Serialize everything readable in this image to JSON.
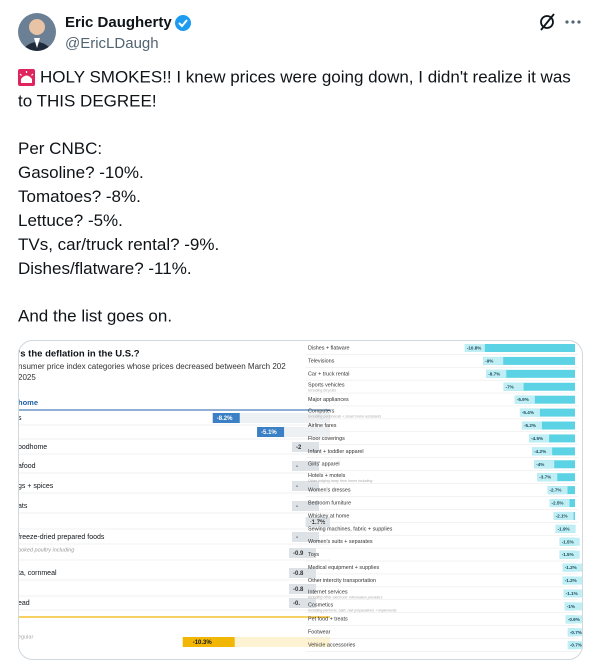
{
  "author": {
    "name": "Eric Daugherty",
    "handle": "@EricLDaugh"
  },
  "tweet": {
    "paragraphs": [
      [
        "HOLY SMOKES!! I knew prices were going down, I didn't realize it was",
        "to THIS DEGREE!"
      ],
      [
        "Per CNBC:",
        "Gasoline? -10%.",
        "Tomatoes? -8%.",
        "Lettuce? -5%.",
        "TVs, car/truck rental? -9%.",
        "Dishes/flatware? -11%."
      ],
      [
        "And the list goes on."
      ]
    ]
  },
  "image": {
    "left": {
      "title": "'s the deflation in the U.S.?",
      "subtitle": [
        "nsumer price index categories whose prices decreased between March 202",
        "2025"
      ],
      "section": "home",
      "rows": [
        {
          "label": "s",
          "value": -8.2,
          "value_label": "-8.2%"
        },
        {
          "value": -5.1,
          "value_label": "-5.1%"
        },
        {
          "label": "oodhome",
          "value_label": "-2"
        },
        {
          "label": "afood",
          "value_label": "-"
        },
        {
          "label": "gs + spices",
          "value_label": "-"
        },
        {
          "label": "ats",
          "value_label": "-"
        },
        {
          "value": -1.7,
          "value_label": "-1.7%"
        },
        {
          "label": " freeze-dried prepared foods",
          "value_label": "-"
        },
        {
          "note": "ooked poultry including",
          "value_label": "-0.9"
        },
        {
          "label": "ta, cornmeal",
          "value_label": "-0.8"
        },
        {
          "value_label": "-0.8"
        },
        {
          "label": "ead",
          "value_label": "-0."
        }
      ],
      "footer": {
        "note": "egular",
        "value": -10.3,
        "value_label": "-10.3%"
      }
    },
    "right": {
      "rows": [
        {
          "label": "Dishes + flatware",
          "value": -10.8,
          "value_label": "-10.8%"
        },
        {
          "label": "Televisions",
          "value": -9,
          "value_label": "-9%"
        },
        {
          "label": "Car + truck rental",
          "value": -8.7,
          "value_label": "-8.7%"
        },
        {
          "label": "Sports vehicles",
          "note": "Including bicycles",
          "value": -7,
          "value_label": "-7%"
        },
        {
          "label": "Major appliances",
          "value": -5.9,
          "value_label": "-5.9%"
        },
        {
          "label": "Computers",
          "note": "Including peripherals + smart home assistants",
          "value": -5.4,
          "value_label": "-5.4%"
        },
        {
          "label": "Airline fares",
          "value": -5.2,
          "value_label": "-5.2%"
        },
        {
          "label": "Floor coverings",
          "value": -4.5,
          "value_label": "-4.5%"
        },
        {
          "label": "Infant + toddler apparel",
          "value": -4.2,
          "value_label": "-4.2%"
        },
        {
          "label": "Girls' apparel",
          "value": -4,
          "value_label": "-4%"
        },
        {
          "label": "Hotels + motels",
          "note": "Other lodging away from home including",
          "value": -3.7,
          "value_label": "-3.7%"
        },
        {
          "label": "Women's dresses",
          "value": -2.7,
          "value_label": "-2.7%"
        },
        {
          "label": "Bedroom furniture",
          "value": -2.5,
          "value_label": "-2.5%"
        },
        {
          "label": "Whiskey at home",
          "value": -2.1,
          "value_label": "-2.1%"
        },
        {
          "label": "Sewing machines, fabric + supplies",
          "value": -1.9,
          "value_label": "-1.9%"
        },
        {
          "label": "Women's suits + separates",
          "value": -1.5,
          "value_label": "-1.5%"
        },
        {
          "label": "Toys",
          "value": -1.5,
          "value_label": "-1.5%"
        },
        {
          "label": "Medical equipment + supplies",
          "value": -1.2,
          "value_label": "-1.2%"
        },
        {
          "label": "Other intercity transportation",
          "value": -1.2,
          "value_label": "-1.2%"
        },
        {
          "label": "Internet services",
          "note": "Including other electronic information providers",
          "value": -1.1,
          "value_label": "-1.1%"
        },
        {
          "label": "Cosmetics",
          "note": "Including perfume, bath, nail preparations + implements",
          "value": -1,
          "value_label": "-1%"
        },
        {
          "label": "Pet food + treats",
          "value": -0.9,
          "value_label": "-0.9%"
        },
        {
          "label": "Footwear",
          "value": -0.7,
          "value_label": "-0.7%"
        },
        {
          "label": "Vehicle accessories",
          "value": -0.7,
          "value_label": "-0.7%"
        }
      ]
    }
  }
}
